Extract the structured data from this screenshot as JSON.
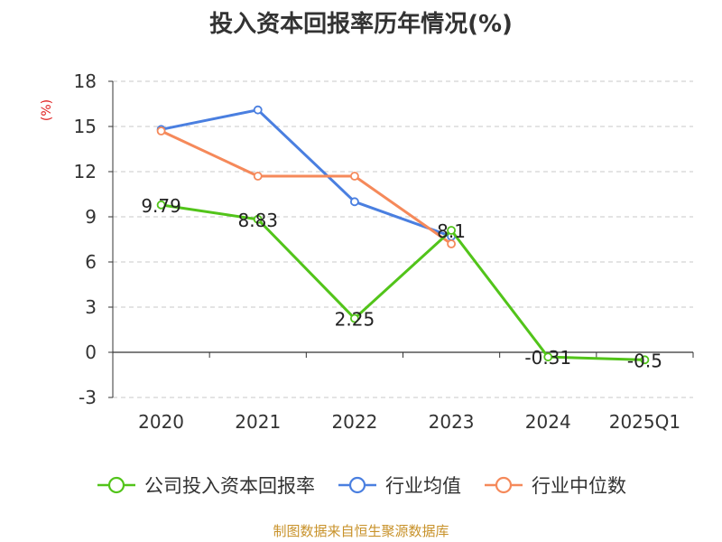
{
  "title": "投入资本回报率历年情况(%)",
  "source": "制图数据来自恒生聚源数据库",
  "chart_data": {
    "type": "line",
    "title": "投入资本回报率历年情况(%)",
    "ylabel": "(%)",
    "xlabel": "",
    "categories": [
      "2020",
      "2021",
      "2022",
      "2023",
      "2024",
      "2025Q1"
    ],
    "ylim": [
      -3,
      18
    ],
    "yticks": [
      -3,
      0,
      3,
      6,
      9,
      12,
      15,
      18
    ],
    "grid": true,
    "legend_position": "bottom",
    "series": [
      {
        "name": "公司投入资本回报率",
        "color": "#52c41a",
        "values": [
          9.79,
          8.83,
          2.25,
          8.1,
          -0.31,
          -0.5
        ],
        "labels": [
          "9.79",
          "8.83",
          "2.25",
          "8.1",
          "-0.31",
          "-0.5"
        ]
      },
      {
        "name": "行业均值",
        "color": "#4a7fe0",
        "values": [
          14.8,
          16.1,
          10.0,
          7.7,
          null,
          null
        ]
      },
      {
        "name": "行业中位数",
        "color": "#f5895a",
        "values": [
          14.7,
          11.7,
          11.7,
          7.2,
          null,
          null
        ]
      }
    ]
  }
}
